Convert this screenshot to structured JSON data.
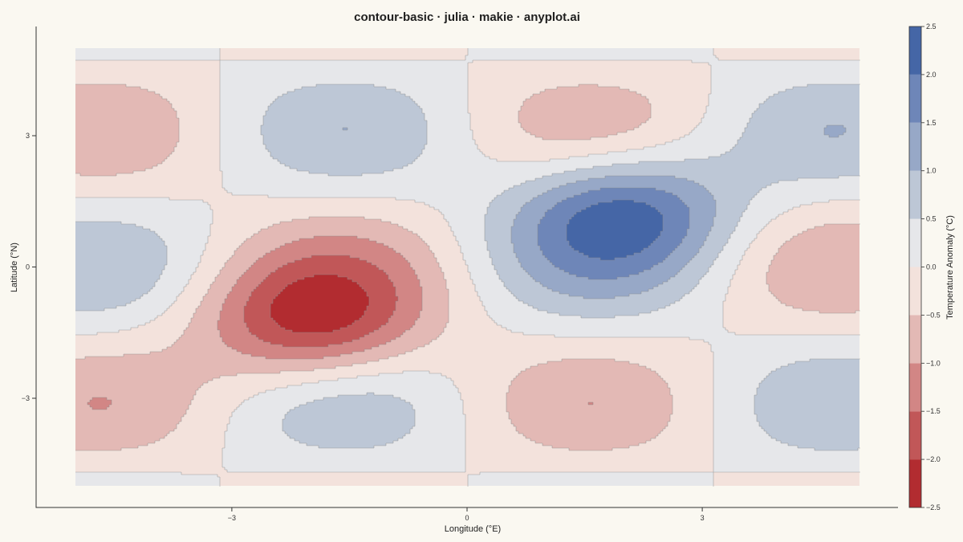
{
  "chart_data": {
    "type": "contour",
    "title": "contour-basic · julia · makie · anyplot.ai",
    "xlabel": "Longitude (°E)",
    "ylabel": "Latitude (°N)",
    "xlim": [
      -5,
      5
    ],
    "ylim": [
      -5,
      5
    ],
    "x_ticks": [
      -3,
      0,
      3
    ],
    "x_tick_labels": [
      "−3",
      "0",
      "3"
    ],
    "y_ticks": [
      -3,
      0,
      3
    ],
    "y_tick_labels": [
      "−3",
      "0",
      "3"
    ],
    "field": "z = sin(x)·cos(y) + 2·exp(-((x-2)^2+(y-1.3)^2)/2) - 2·exp(-((x+2)^2+(y+1.3)^2)/2)",
    "levels": [
      -2.5,
      -2.0,
      -1.5,
      -1.0,
      -0.5,
      0.0,
      0.5,
      1.0,
      1.5,
      2.0,
      2.5
    ],
    "level_colors": [
      "#b22c30",
      "#c15758",
      "#d28685",
      "#e3b9b5",
      "#f3e2dc",
      "#e6e7ea",
      "#bdc7d6",
      "#97a8c7",
      "#6e86b8",
      "#4566a6"
    ],
    "colorbar": {
      "label": "Temperature Anomaly (°C)",
      "tick_labels": [
        "−2.5",
        "−2.0",
        "−1.5",
        "−1.0",
        "−0.5",
        "0.0",
        "0.5",
        "1.0",
        "1.5",
        "2.0",
        "2.5"
      ]
    },
    "grid": false
  }
}
